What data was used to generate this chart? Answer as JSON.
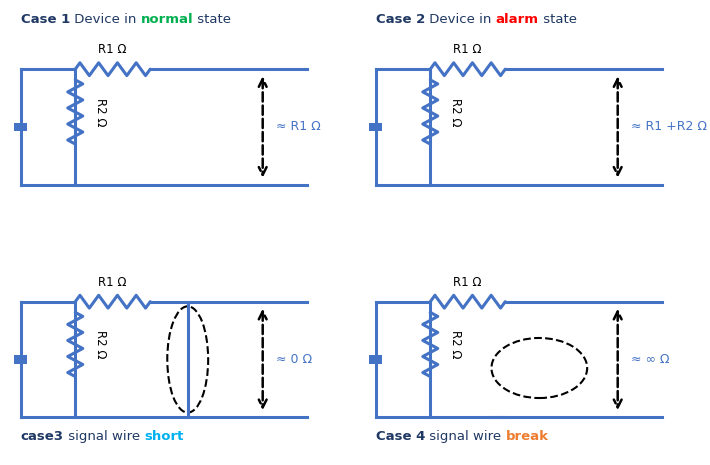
{
  "bg_color": "#ffffff",
  "cc": "#4472c4",
  "lw": 2.2,
  "title_color": "#1f3864",
  "normal_color": "#00b050",
  "alarm_color": "#ff0000",
  "short_color": "#00b0f0",
  "break_color": "#ed7d31",
  "arrow_color": "#000000",
  "r_color": "#000000",
  "cases": [
    {
      "num": 1,
      "label": "≈ R1 Ω",
      "has_short": false,
      "has_break": false
    },
    {
      "num": 2,
      "label": "≈ R1 +R2 Ω",
      "has_short": false,
      "has_break": false
    },
    {
      "num": 3,
      "label": "≈ 0 Ω",
      "has_short": true,
      "has_break": false
    },
    {
      "num": 4,
      "label": "≈ ∞ Ω",
      "has_short": false,
      "has_break": true
    }
  ],
  "titles": [
    [
      [
        "Case 1",
        "bold",
        "#1f3864"
      ],
      [
        " Device in ",
        "normal",
        "#1f3864"
      ],
      [
        "normal",
        "bold",
        "#00b050"
      ],
      [
        " state",
        "normal",
        "#1f3864"
      ]
    ],
    [
      [
        "Case 2",
        "bold",
        "#1f3864"
      ],
      [
        " Device in ",
        "normal",
        "#1f3864"
      ],
      [
        "alarm",
        "bold",
        "#ff0000"
      ],
      [
        " state",
        "normal",
        "#1f3864"
      ]
    ],
    [
      [
        "case3",
        "bold",
        "#1f3864"
      ],
      [
        " signal wire ",
        "normal",
        "#1f3864"
      ],
      [
        "short",
        "bold",
        "#00b0f0"
      ]
    ],
    [
      [
        "Case 4",
        "bold",
        "#1f3864"
      ],
      [
        " signal wire ",
        "normal",
        "#1f3864"
      ],
      [
        "break",
        "bold",
        "#ed7d31"
      ]
    ]
  ]
}
